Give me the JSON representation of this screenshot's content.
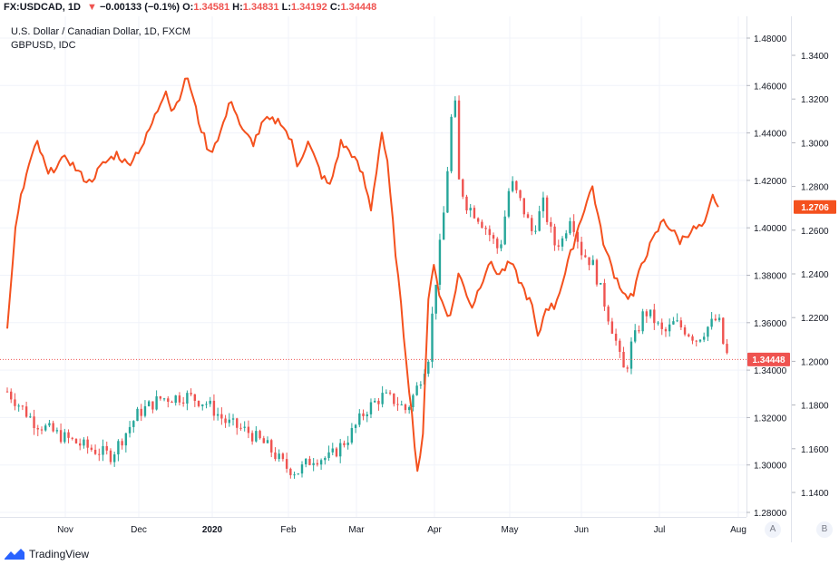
{
  "header": {
    "symbol": "FX:USDCAD, 1D",
    "change_arrow": "▼",
    "change": "−0.00133 (−0.1%)",
    "o_label": "O:",
    "o_value": "1.34581",
    "h_label": "H:",
    "h_value": "1.34831",
    "l_label": "L:",
    "l_value": "1.34192",
    "c_label": "C:",
    "c_value": "1.34448",
    "last_value": "1.34448"
  },
  "series_titles": {
    "main": "U.S. Dollar / Canadian Dollar, 1D, FXCM",
    "compare": "GBPUSD, IDC"
  },
  "axis_buttons": {
    "a": "A",
    "b": "B"
  },
  "footer": {
    "brand": "TradingView"
  },
  "colors": {
    "up": "#26a69a",
    "down": "#ef5350",
    "compare_line": "#f4511e",
    "grid": "#f0f3fa"
  },
  "chart_data": {
    "type": "line",
    "x_labels": [
      "Nov",
      "Dec",
      "2020",
      "Feb",
      "Mar",
      "Apr",
      "May",
      "Jun",
      "Jul",
      "Aug"
    ],
    "left_axis": {
      "series": "USDCAD",
      "ticks": [
        "1.48000",
        "1.46000",
        "1.44000",
        "1.42000",
        "1.40000",
        "1.38000",
        "1.36000",
        "1.34000",
        "1.32000",
        "1.30000",
        "1.28000"
      ],
      "range": [
        1.275,
        1.49
      ],
      "last_label": "1.34448"
    },
    "right_axis": {
      "series": "GBPUSD",
      "ticks": [
        "1.3400",
        "1.3200",
        "1.3000",
        "1.2800",
        "1.2600",
        "1.2400",
        "1.2200",
        "1.2000",
        "1.1800",
        "1.1600",
        "1.1400"
      ],
      "range": [
        1.125,
        1.355
      ],
      "last_label": "1.2706"
    },
    "series": [
      {
        "name": "U.S. Dollar / Canadian Dollar",
        "style": "candles",
        "axis": "left",
        "anchors": [
          [
            0,
            1.331
          ],
          [
            10,
            1.318
          ],
          [
            20,
            1.312
          ],
          [
            30,
            1.307
          ],
          [
            38,
            1.304
          ],
          [
            48,
            1.322
          ],
          [
            56,
            1.328
          ],
          [
            66,
            1.329
          ],
          [
            73,
            1.326
          ],
          [
            80,
            1.318
          ],
          [
            88,
            1.314
          ],
          [
            95,
            1.308
          ],
          [
            102,
            1.299
          ],
          [
            106,
            1.297
          ],
          [
            112,
            1.303
          ],
          [
            118,
            1.303
          ],
          [
            125,
            1.312
          ],
          [
            131,
            1.323
          ],
          [
            137,
            1.329
          ],
          [
            142,
            1.327
          ],
          [
            146,
            1.323
          ],
          [
            150,
            1.333
          ],
          [
            154,
            1.346
          ],
          [
            156,
            1.37
          ],
          [
            158,
            1.39
          ],
          [
            160,
            1.41
          ],
          [
            162,
            1.44
          ],
          [
            163,
            1.455
          ],
          [
            164,
            1.45
          ],
          [
            165,
            1.42
          ],
          [
            168,
            1.41
          ],
          [
            172,
            1.405
          ],
          [
            175,
            1.4
          ],
          [
            180,
            1.39
          ],
          [
            184,
            1.42
          ],
          [
            188,
            1.41
          ],
          [
            192,
            1.398
          ],
          [
            196,
            1.41
          ],
          [
            200,
            1.393
          ],
          [
            203,
            1.395
          ],
          [
            206,
            1.406
          ],
          [
            210,
            1.39
          ],
          [
            214,
            1.385
          ],
          [
            218,
            1.37
          ],
          [
            220,
            1.362
          ],
          [
            222,
            1.355
          ],
          [
            224,
            1.345
          ],
          [
            226,
            1.338
          ],
          [
            228,
            1.35
          ],
          [
            230,
            1.355
          ],
          [
            233,
            1.365
          ],
          [
            236,
            1.362
          ],
          [
            240,
            1.355
          ],
          [
            244,
            1.36
          ],
          [
            248,
            1.357
          ],
          [
            252,
            1.353
          ],
          [
            256,
            1.358
          ],
          [
            260,
            1.362
          ],
          [
            262,
            1.35
          ],
          [
            264,
            1.344
          ]
        ],
        "last": 1.34448
      },
      {
        "name": "GBPUSD",
        "style": "line",
        "axis": "right",
        "anchors": [
          [
            0,
            1.215
          ],
          [
            3,
            1.26
          ],
          [
            5,
            1.275
          ],
          [
            8,
            1.29
          ],
          [
            11,
            1.3
          ],
          [
            15,
            1.285
          ],
          [
            18,
            1.29
          ],
          [
            22,
            1.293
          ],
          [
            27,
            1.285
          ],
          [
            30,
            1.282
          ],
          [
            35,
            1.29
          ],
          [
            40,
            1.295
          ],
          [
            44,
            1.29
          ],
          [
            50,
            1.3
          ],
          [
            55,
            1.315
          ],
          [
            58,
            1.325
          ],
          [
            60,
            1.315
          ],
          [
            62,
            1.318
          ],
          [
            64,
            1.325
          ],
          [
            66,
            1.33
          ],
          [
            70,
            1.31
          ],
          [
            74,
            1.295
          ],
          [
            78,
            1.305
          ],
          [
            82,
            1.32
          ],
          [
            86,
            1.305
          ],
          [
            90,
            1.3
          ],
          [
            94,
            1.31
          ],
          [
            100,
            1.31
          ],
          [
            104,
            1.3
          ],
          [
            106,
            1.29
          ],
          [
            110,
            1.3
          ],
          [
            115,
            1.285
          ],
          [
            118,
            1.28
          ],
          [
            122,
            1.3
          ],
          [
            126,
            1.295
          ],
          [
            130,
            1.285
          ],
          [
            133,
            1.27
          ],
          [
            137,
            1.305
          ],
          [
            139,
            1.29
          ],
          [
            142,
            1.25
          ],
          [
            146,
            1.2
          ],
          [
            150,
            1.15
          ],
          [
            152,
            1.165
          ],
          [
            154,
            1.23
          ],
          [
            156,
            1.245
          ],
          [
            158,
            1.23
          ],
          [
            162,
            1.22
          ],
          [
            165,
            1.24
          ],
          [
            170,
            1.225
          ],
          [
            173,
            1.235
          ],
          [
            176,
            1.245
          ],
          [
            180,
            1.24
          ],
          [
            184,
            1.245
          ],
          [
            188,
            1.235
          ],
          [
            192,
            1.225
          ],
          [
            194,
            1.21
          ],
          [
            197,
            1.225
          ],
          [
            200,
            1.225
          ],
          [
            204,
            1.24
          ],
          [
            208,
            1.258
          ],
          [
            211,
            1.27
          ],
          [
            214,
            1.28
          ],
          [
            217,
            1.26
          ],
          [
            219,
            1.25
          ],
          [
            222,
            1.24
          ],
          [
            226,
            1.23
          ],
          [
            229,
            1.23
          ],
          [
            232,
            1.245
          ],
          [
            236,
            1.255
          ],
          [
            240,
            1.265
          ],
          [
            243,
            1.26
          ],
          [
            246,
            1.255
          ],
          [
            250,
            1.26
          ],
          [
            255,
            1.262
          ],
          [
            258,
            1.275
          ],
          [
            260,
            1.2706
          ]
        ],
        "last": 1.2706
      }
    ]
  }
}
